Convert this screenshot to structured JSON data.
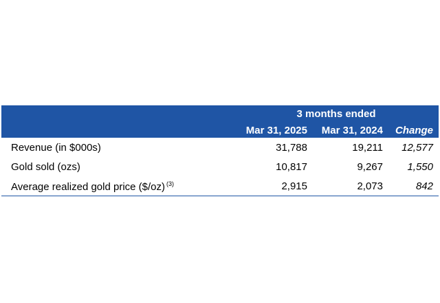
{
  "table": {
    "group_header": "3 months ended",
    "columns": [
      "Mar 31, 2025",
      "Mar 31, 2024",
      "Change"
    ],
    "rows": [
      {
        "label": "Revenue (in $000s)",
        "note": "",
        "values": [
          "31,788",
          "19,211",
          "12,577"
        ]
      },
      {
        "label": "Gold sold (ozs)",
        "note": "",
        "values": [
          "10,817",
          "9,267",
          "1,550"
        ]
      },
      {
        "label": "Average realized gold price ($/oz)",
        "note": "(3)",
        "values": [
          "2,915",
          "2,073",
          "842"
        ]
      }
    ]
  },
  "colors": {
    "header_bg": "#1f55a5",
    "header_text": "#ffffff"
  }
}
